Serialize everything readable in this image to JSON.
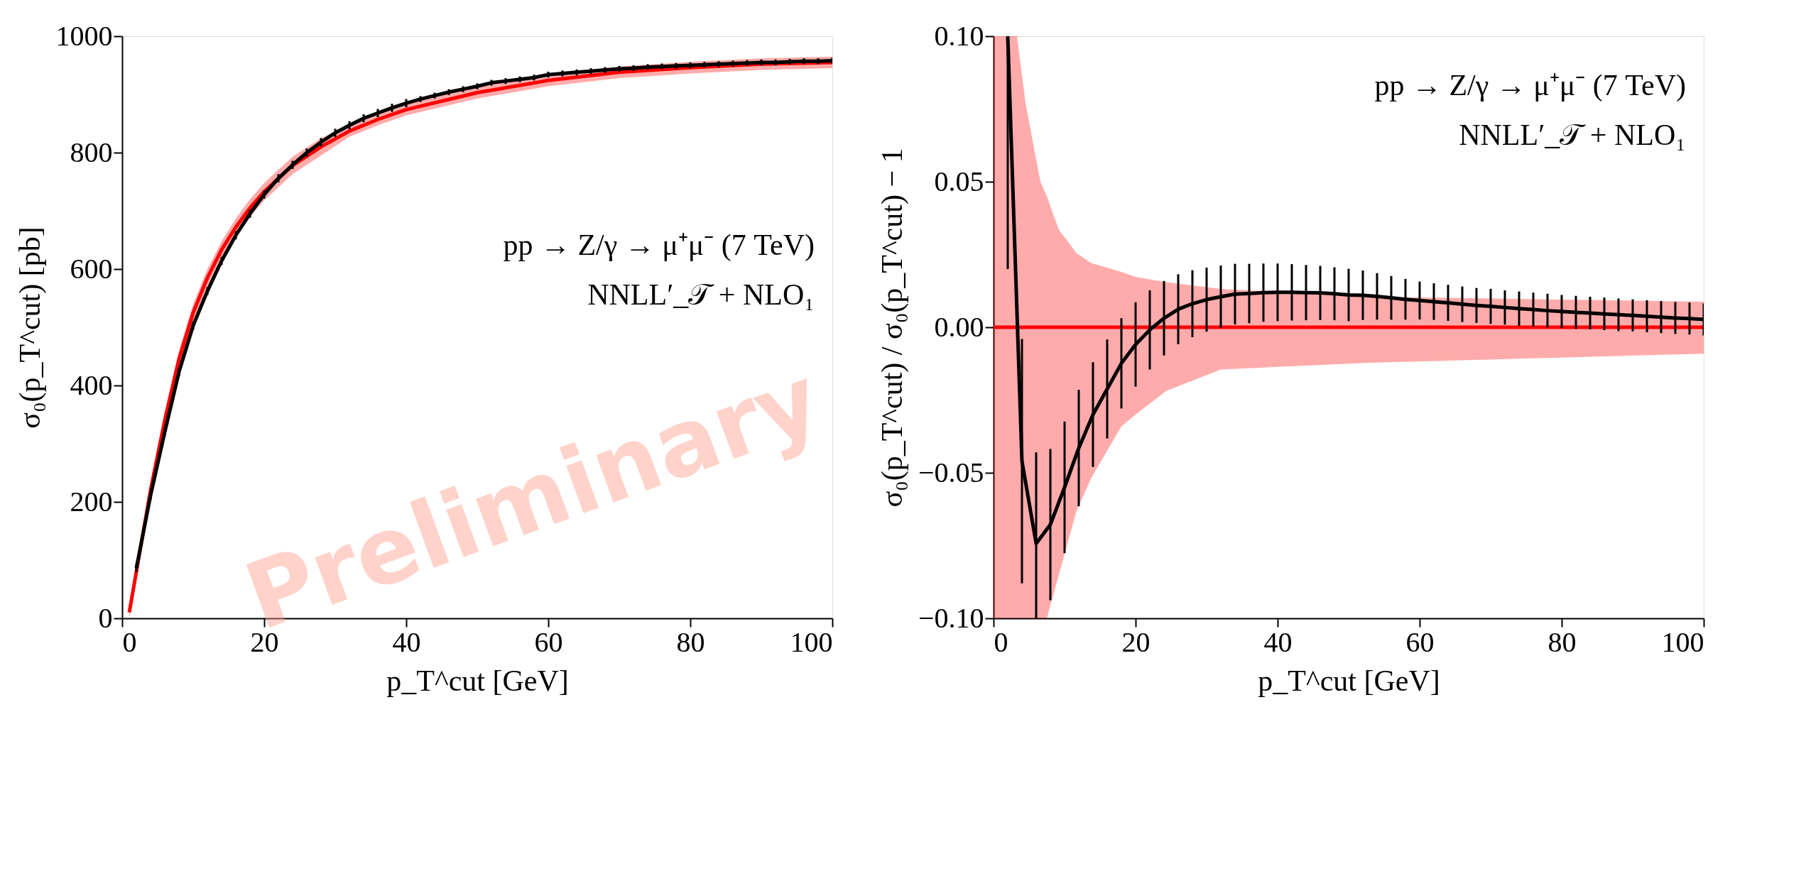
{
  "chart_data": [
    {
      "type": "line",
      "xlabel": "p_T^cut [GeV]",
      "ylabel": "σ₀(p_T^cut) [pb]",
      "xlim": [
        0,
        100
      ],
      "ylim": [
        0,
        1000
      ],
      "xticks": [
        0,
        20,
        40,
        60,
        80,
        100
      ],
      "yticks": [
        0,
        200,
        400,
        600,
        800,
        1000
      ],
      "annotations": [
        "pp → Z/γ → μ⁺μ⁻ (7 TeV)",
        "NNLL′_𝒯 + NLO₁",
        "Preliminary"
      ],
      "series": [
        {
          "color": "#ff0000",
          "x": [
            1,
            2,
            4,
            6,
            8,
            10,
            12,
            14,
            16,
            18,
            20,
            24,
            28,
            32,
            36,
            40,
            50,
            60,
            70,
            80,
            90,
            100
          ],
          "values": [
            10,
            80,
            220,
            340,
            445,
            525,
            585,
            633,
            672,
            705,
            733,
            778,
            810,
            837,
            857,
            874,
            903,
            924,
            938,
            946,
            952,
            955
          ],
          "lower": [
            0,
            65,
            205,
            325,
            430,
            510,
            570,
            618,
            657,
            690,
            718,
            763,
            795,
            827,
            847,
            864,
            893,
            914,
            928,
            936,
            942,
            945
          ],
          "upper": [
            20,
            95,
            235,
            355,
            460,
            540,
            600,
            648,
            687,
            720,
            748,
            793,
            825,
            847,
            867,
            884,
            913,
            934,
            948,
            956,
            962,
            965
          ]
        },
        {
          "color": "#000000",
          "x": [
            2,
            4,
            6,
            8,
            10,
            12,
            14,
            16,
            18,
            20,
            22,
            24,
            26,
            28,
            30,
            32,
            34,
            36,
            38,
            40,
            42,
            44,
            46,
            48,
            50,
            52,
            54,
            56,
            58,
            60,
            62,
            64,
            66,
            68,
            70,
            72,
            74,
            76,
            78,
            80,
            82,
            84,
            86,
            88,
            90,
            92,
            94,
            96,
            98,
            100
          ],
          "values": [
            86,
            211,
            320,
            423,
            503,
            562,
            614,
            658,
            695,
            728,
            756,
            779,
            800,
            818,
            834,
            847,
            859,
            868,
            877,
            885,
            892,
            898,
            904,
            909,
            914,
            920,
            923,
            926,
            929,
            934,
            936,
            938,
            940,
            942,
            944,
            945,
            947,
            948,
            949,
            950,
            951,
            952,
            953,
            954,
            955,
            955,
            956,
            957,
            957,
            958
          ],
          "errors": [
            7,
            7,
            7,
            7,
            7,
            7,
            7,
            7,
            7,
            7,
            7,
            7,
            7,
            7,
            7,
            7,
            7,
            7,
            7,
            7,
            5,
            5,
            5,
            5,
            5,
            5,
            5,
            5,
            5,
            5,
            5,
            5,
            5,
            5,
            5,
            5,
            5,
            5,
            5,
            5,
            5,
            5,
            5,
            5,
            5,
            5,
            5,
            5,
            5,
            5
          ]
        }
      ]
    },
    {
      "type": "line",
      "xlabel": "p_T^cut [GeV]",
      "ylabel": "σ₀(p_T^cut) / σ₀(p_T^cut) − 1",
      "xlim": [
        0,
        100
      ],
      "ylim": [
        -0.1,
        0.1
      ],
      "xticks": [
        0,
        20,
        40,
        60,
        80,
        100
      ],
      "yticks": [
        {
          "value": -0.1,
          "label": "−0.10"
        },
        {
          "value": -0.05,
          "label": "−0.05"
        },
        {
          "value": 0,
          "label": "0.00"
        },
        {
          "value": 0.05,
          "label": "0.05"
        },
        {
          "value": 0.1,
          "label": "0.10"
        }
      ],
      "annotations": [
        "pp → Z/γ → μ⁺μ⁻ (7 TeV)",
        "NNLL′_𝒯 + NLO₁"
      ],
      "series": [
        {
          "color": "#ff0000",
          "x": [
            0,
            2,
            3.3,
            4.5,
            6.6,
            7.5,
            9.2,
            11.7,
            13.8,
            18,
            20,
            24.3,
            32,
            53,
            100
          ],
          "values": [
            0,
            0,
            0,
            0,
            0,
            0,
            0,
            0,
            0,
            0,
            0,
            0,
            0,
            0,
            0
          ],
          "lower": [
            -0.1,
            -0.1,
            -0.1,
            -0.1,
            -0.1,
            -0.1,
            -0.085,
            -0.063,
            -0.0516,
            -0.034,
            -0.03,
            -0.0219,
            -0.0145,
            -0.0122,
            -0.0091
          ],
          "upper": [
            0.1,
            0.1,
            0.1,
            0.077,
            0.05,
            0.045,
            0.0335,
            0.0254,
            0.022,
            0.019,
            0.0173,
            0.0155,
            0.0132,
            0.0105,
            0.0088
          ]
        },
        {
          "color": "#000000",
          "x": [
            2,
            4,
            6,
            8,
            10,
            12,
            14,
            16,
            18,
            20,
            22,
            24,
            26,
            28,
            30,
            32,
            34,
            36,
            38,
            40,
            42,
            44,
            46,
            48,
            50,
            52,
            54,
            56,
            58,
            60,
            62,
            64,
            66,
            68,
            70,
            72,
            74,
            76,
            78,
            80,
            82,
            84,
            86,
            88,
            90,
            92,
            94,
            96,
            98,
            100
          ],
          "values": [
            0.1,
            -0.046,
            -0.0743,
            -0.0678,
            -0.055,
            -0.0415,
            -0.03,
            -0.0212,
            -0.0124,
            -0.0059,
            -0.0009,
            0.0031,
            0.0062,
            0.0081,
            0.0095,
            0.0105,
            0.0114,
            0.0116,
            0.0119,
            0.012,
            0.012,
            0.0119,
            0.0118,
            0.0115,
            0.0111,
            0.011,
            0.0106,
            0.0101,
            0.0096,
            0.0092,
            0.0088,
            0.0084,
            0.0079,
            0.0075,
            0.0072,
            0.0068,
            0.0064,
            0.0061,
            0.0057,
            0.0054,
            0.0051,
            0.0049,
            0.0046,
            0.0043,
            0.0041,
            0.0038,
            0.0035,
            0.0032,
            0.003,
            0.0027
          ],
          "errors": [
            [
              0.02,
              0.1
            ],
            0.042,
            [
              -0.1,
              -0.043
            ],
            0.026,
            0.0226,
            0.02,
            0.018,
            0.017,
            0.0155,
            0.0145,
            0.0136,
            0.0128,
            0.012,
            0.0115,
            0.011,
            0.0107,
            0.0104,
            0.0102,
            0.01,
            0.0099,
            0.0097,
            0.0095,
            0.0093,
            0.0091,
            0.009,
            0.0085,
            0.008,
            0.0075,
            0.007,
            0.0065,
            0.0063,
            0.0062,
            0.0061,
            0.006,
            0.006,
            0.0059,
            0.0059,
            0.0058,
            0.0058,
            0.0057,
            0.0057,
            0.0056,
            0.0056,
            0.0056,
            0.0055,
            0.0055,
            0.0055,
            0.0055,
            0.0055,
            0.0055
          ]
        }
      ]
    }
  ]
}
